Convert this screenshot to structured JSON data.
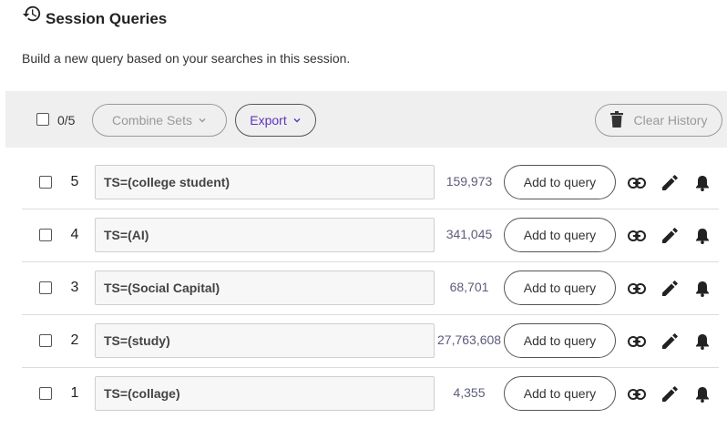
{
  "header": {
    "title": "Session Queries",
    "subtitle": "Build a new query based on your searches in this session."
  },
  "toolbar": {
    "selected_count": "0/5",
    "combine_label": "Combine Sets",
    "export_label": "Export",
    "clear_label": "Clear History"
  },
  "rows": [
    {
      "number": "5",
      "query": "TS=(college student)",
      "count": "159,973",
      "add_label": "Add to query"
    },
    {
      "number": "4",
      "query": "TS=(AI)",
      "count": "341,045",
      "add_label": "Add to query"
    },
    {
      "number": "3",
      "query": "TS=(Social Capital)",
      "count": "68,701",
      "add_label": "Add to query"
    },
    {
      "number": "2",
      "query": "TS=(study)",
      "count": "27,763,608",
      "add_label": "Add to query"
    },
    {
      "number": "1",
      "query": "TS=(collage)",
      "count": "4,355",
      "add_label": "Add to query"
    }
  ],
  "icons": {
    "header": "history-icon",
    "toolbar": [
      "chevron-down-icon",
      "trash-icon"
    ],
    "row_actions": [
      "link-icon",
      "edit-icon",
      "bell-icon"
    ]
  }
}
